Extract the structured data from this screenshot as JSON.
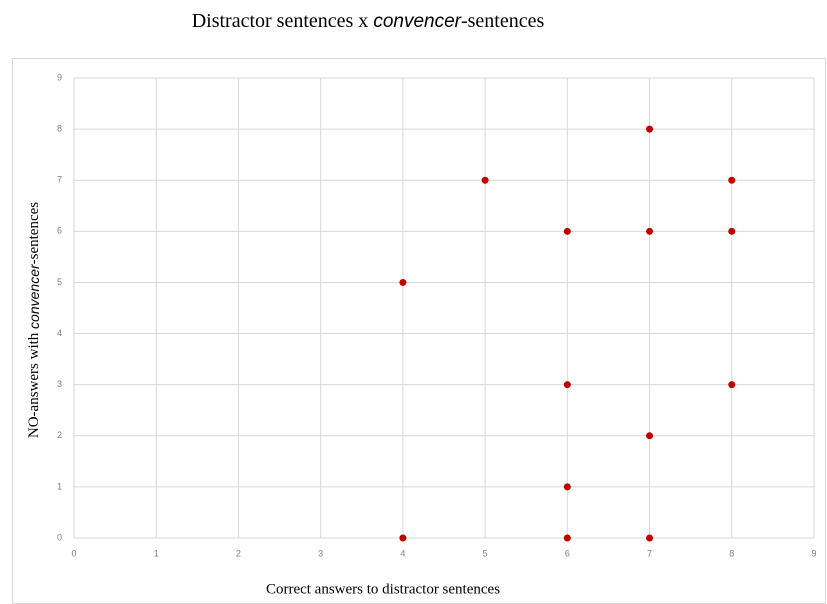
{
  "chart_data": {
    "type": "scatter",
    "title": [
      "Distractor sentences x ",
      "convencer",
      "-sentences"
    ],
    "x_label": "Correct answers to distractor sentences",
    "y_label": [
      "NO-answers with ",
      "convencer",
      "-sentences"
    ],
    "x": [
      4,
      4,
      5,
      6,
      6,
      6,
      6,
      7,
      7,
      7,
      7,
      8,
      8,
      8
    ],
    "values": [
      0,
      5,
      7,
      6,
      3,
      1,
      0,
      8,
      6,
      2,
      0,
      7,
      6,
      3
    ],
    "color": "#c00000",
    "xlim": [
      0,
      9
    ],
    "xticks": [
      0,
      1,
      2,
      3,
      4,
      5,
      6,
      7,
      8,
      9
    ],
    "ylim": [
      0,
      9
    ],
    "yticks": [
      0,
      1,
      2,
      3,
      4,
      5,
      6,
      7,
      8,
      9
    ],
    "grid": true
  }
}
